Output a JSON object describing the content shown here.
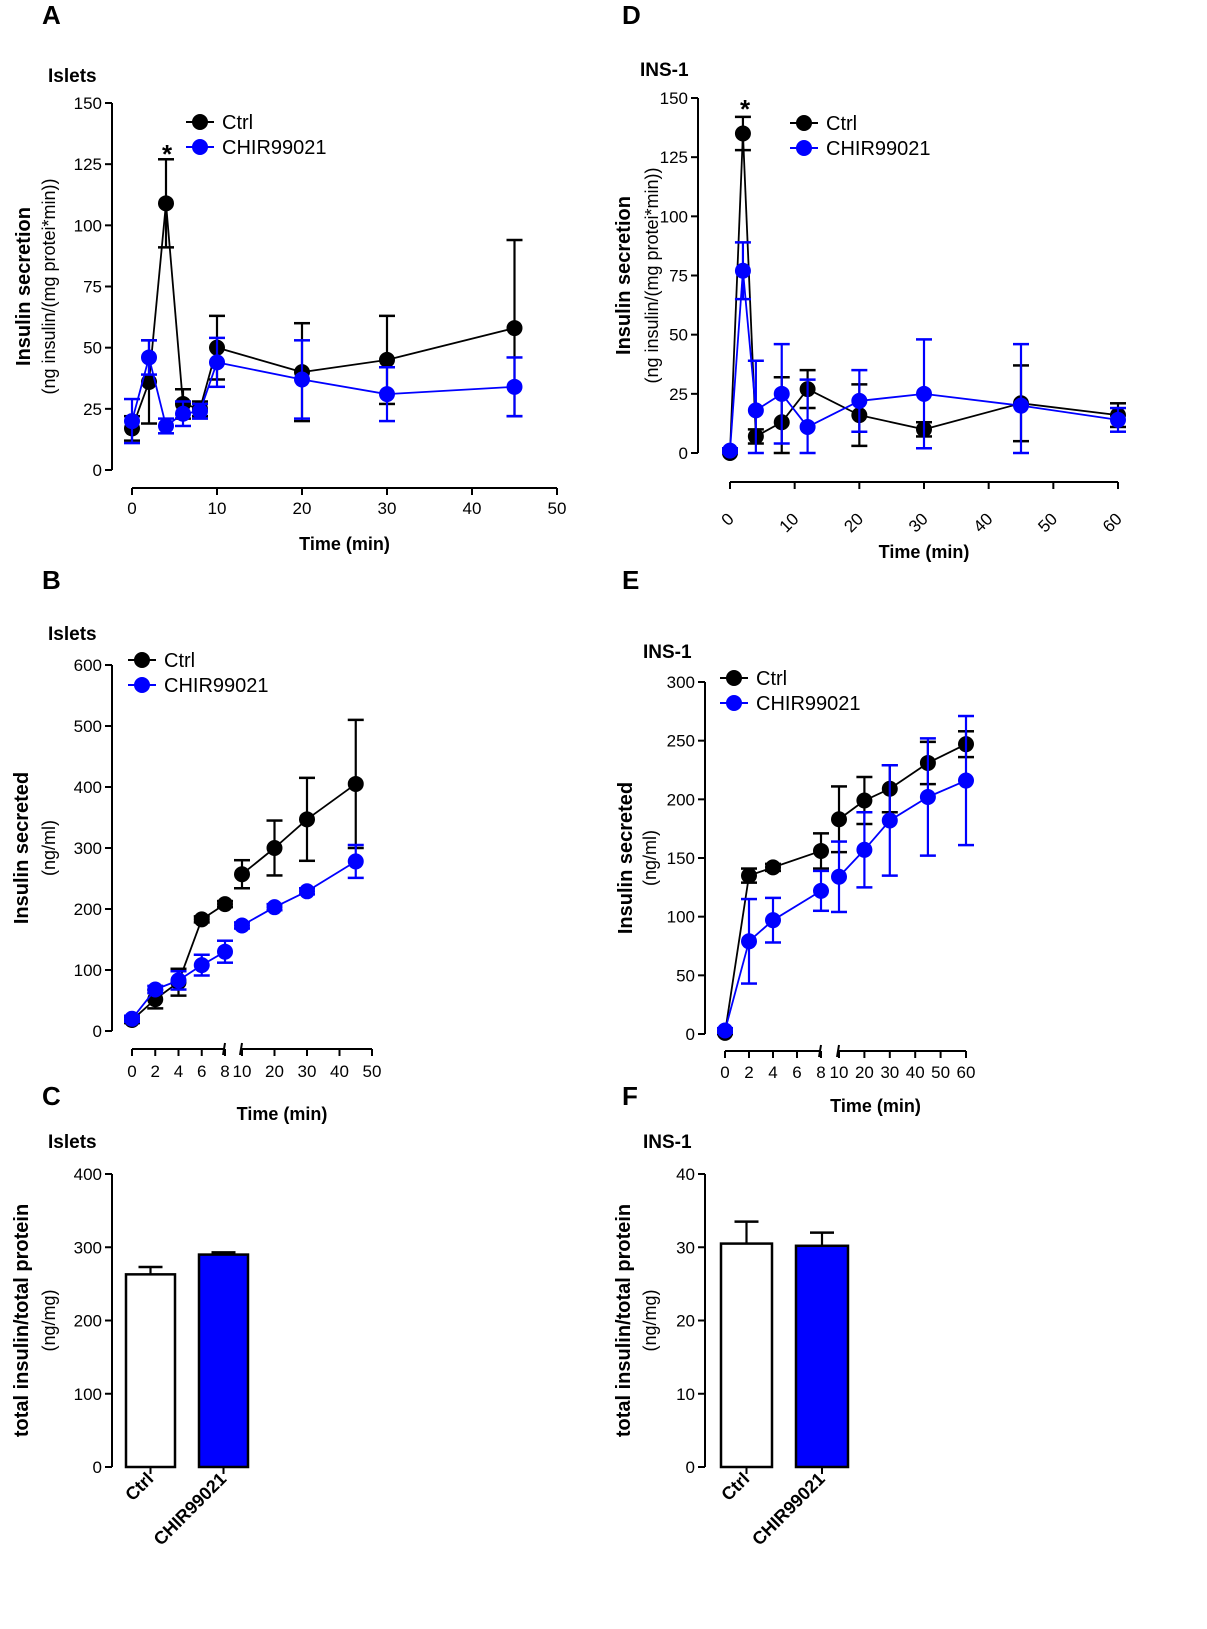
{
  "panels": [
    {
      "id": "A",
      "title": "Islets",
      "y_label_main": "Insulin secretion",
      "y_label_sub": "(ng insulin/(mg protei*min))",
      "x_label": "Time (min)",
      "y_ticks": [
        "0",
        "25",
        "50",
        "75",
        "100",
        "125",
        "150"
      ],
      "x_ticks": [
        "0",
        "10",
        "20",
        "30",
        "40",
        "50"
      ],
      "legend": [
        "Ctrl",
        "CHIR99021"
      ],
      "annotation": "*"
    },
    {
      "id": "B",
      "title": "Islets",
      "y_label_main": "Insulin secreted",
      "y_label_sub": "(ng/ml)",
      "x_label": "Time (min)",
      "y_ticks": [
        "0",
        "100",
        "200",
        "300",
        "400",
        "500",
        "600"
      ],
      "x_ticks_left": [
        "0",
        "2",
        "4",
        "6",
        "8"
      ],
      "x_ticks_right": [
        "10",
        "20",
        "30",
        "40",
        "50"
      ],
      "legend": [
        "Ctrl",
        "CHIR99021"
      ]
    },
    {
      "id": "C",
      "title": "Islets",
      "y_label_main": "total insulin/total protein",
      "y_label_sub": "(ng/mg)",
      "y_ticks": [
        "0",
        "100",
        "200",
        "300",
        "400"
      ],
      "categories": [
        "Ctrl",
        "CHIR99021"
      ]
    },
    {
      "id": "D",
      "title": "INS-1",
      "y_label_main": "Insulin secretion",
      "y_label_sub": "(ng insulin/(mg protei*min))",
      "x_label": "Time (min)",
      "y_ticks": [
        "0",
        "25",
        "50",
        "75",
        "100",
        "125",
        "150"
      ],
      "x_ticks": [
        "0",
        "10",
        "20",
        "30",
        "40",
        "50",
        "60"
      ],
      "legend": [
        "Ctrl",
        "CHIR99021"
      ],
      "annotation": "*"
    },
    {
      "id": "E",
      "title": "INS-1",
      "y_label_main": "Insulin secreted",
      "y_label_sub": "(ng/ml)",
      "x_label": "Time (min)",
      "y_ticks": [
        "0",
        "50",
        "100",
        "150",
        "200",
        "250",
        "300"
      ],
      "x_ticks_left": [
        "0",
        "2",
        "4",
        "6",
        "8"
      ],
      "x_ticks_right": [
        "10",
        "20",
        "30",
        "40",
        "50",
        "60"
      ],
      "legend": [
        "Ctrl",
        "CHIR99021"
      ]
    },
    {
      "id": "F",
      "title": "INS-1",
      "y_label_main": "total insulin/total protein",
      "y_label_sub": "(ng/mg)",
      "y_ticks": [
        "0",
        "10",
        "20",
        "30",
        "40"
      ],
      "categories": [
        "Ctrl",
        "CHIR99021"
      ]
    }
  ],
  "colors": {
    "ctrl": "#000000",
    "chir": "#0000ff",
    "ctrl_bar_fill": "#ffffff",
    "chir_bar_fill": "#0000ff"
  },
  "chart_data": [
    {
      "panel": "A",
      "type": "line",
      "ylim": [
        0,
        150
      ],
      "xlim": [
        0,
        50
      ],
      "series": [
        {
          "name": "Ctrl",
          "x": [
            0,
            2,
            4,
            6,
            8,
            10,
            20,
            30,
            45
          ],
          "y": [
            17,
            36,
            109,
            27,
            25,
            50,
            40,
            45,
            58
          ],
          "err": [
            5,
            17,
            18,
            6,
            3,
            13,
            20,
            18,
            36
          ]
        },
        {
          "name": "CHIR99021",
          "x": [
            0,
            2,
            4,
            6,
            8,
            10,
            20,
            30,
            45
          ],
          "y": [
            20,
            46,
            18,
            23,
            24,
            44,
            37,
            31,
            34
          ],
          "err": [
            9,
            7,
            3,
            5,
            3,
            10,
            16,
            11,
            12
          ]
        }
      ]
    },
    {
      "panel": "B",
      "type": "line",
      "ylim": [
        0,
        600
      ],
      "x_break": true,
      "series": [
        {
          "name": "Ctrl",
          "x": [
            0,
            2,
            4,
            6,
            8,
            10,
            20,
            30,
            45
          ],
          "y": [
            18,
            52,
            80,
            183,
            208,
            257,
            300,
            347,
            405
          ],
          "err": [
            5,
            15,
            22,
            5,
            5,
            23,
            45,
            68,
            105
          ]
        },
        {
          "name": "CHIR99021",
          "x": [
            0,
            2,
            4,
            6,
            8,
            10,
            20,
            30,
            45
          ],
          "y": [
            20,
            68,
            83,
            108,
            130,
            173,
            203,
            229,
            278
          ],
          "err": [
            5,
            6,
            15,
            17,
            18,
            5,
            5,
            5,
            27
          ]
        }
      ]
    },
    {
      "panel": "C",
      "type": "bar",
      "categories": [
        "Ctrl",
        "CHIR99021"
      ],
      "values": [
        263,
        290
      ],
      "err": [
        10,
        3
      ],
      "ylim": [
        0,
        400
      ]
    },
    {
      "panel": "D",
      "type": "line",
      "ylim": [
        0,
        150
      ],
      "xlim": [
        0,
        60
      ],
      "series": [
        {
          "name": "Ctrl",
          "x": [
            0,
            2,
            4,
            8,
            12,
            20,
            30,
            45,
            60
          ],
          "y": [
            0,
            135,
            7,
            13,
            27,
            16,
            10,
            21,
            16
          ],
          "err": [
            1,
            7,
            3,
            19,
            8,
            13,
            3,
            16,
            5
          ]
        },
        {
          "name": "CHIR99021",
          "x": [
            0,
            2,
            4,
            8,
            12,
            20,
            30,
            45,
            60
          ],
          "y": [
            1,
            77,
            18,
            25,
            11,
            22,
            25,
            20,
            14
          ],
          "err": [
            1,
            12,
            21,
            21,
            20,
            13,
            23,
            26,
            5
          ]
        }
      ]
    },
    {
      "panel": "E",
      "type": "line",
      "ylim": [
        0,
        300
      ],
      "x_break": true,
      "series": [
        {
          "name": "Ctrl",
          "x": [
            0,
            2,
            4,
            8,
            10,
            20,
            30,
            45,
            60
          ],
          "y": [
            1,
            135,
            142,
            156,
            183,
            199,
            209,
            231,
            247
          ],
          "err": [
            1,
            6,
            3,
            15,
            28,
            20,
            20,
            18,
            11
          ]
        },
        {
          "name": "CHIR99021",
          "x": [
            0,
            2,
            4,
            8,
            10,
            20,
            30,
            45,
            60
          ],
          "y": [
            3,
            79,
            97,
            122,
            134,
            157,
            182,
            202,
            216
          ],
          "err": [
            2,
            36,
            19,
            17,
            30,
            32,
            47,
            50,
            55
          ]
        }
      ]
    },
    {
      "panel": "F",
      "type": "bar",
      "categories": [
        "Ctrl",
        "CHIR99021"
      ],
      "values": [
        30.5,
        30.2
      ],
      "err": [
        3,
        1.8
      ],
      "ylim": [
        0,
        40
      ]
    }
  ]
}
